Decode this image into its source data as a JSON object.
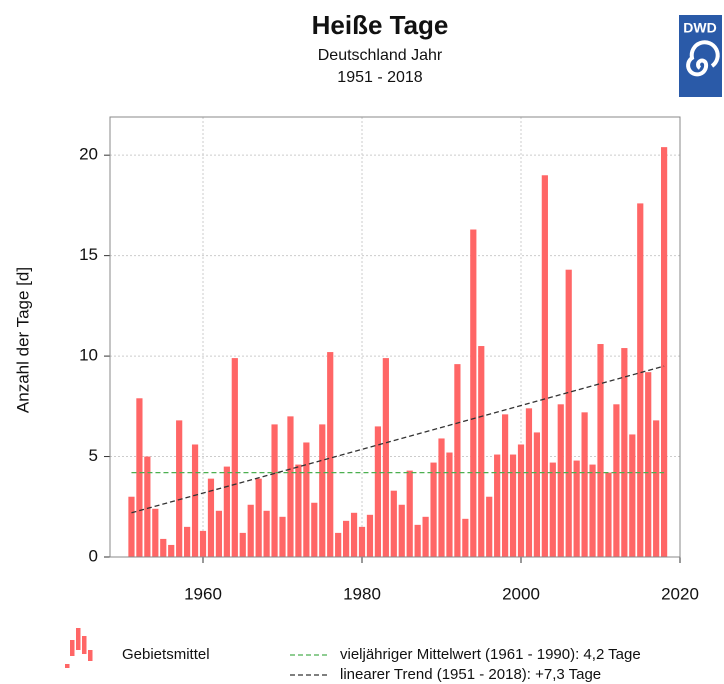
{
  "chart_data": {
    "type": "bar",
    "title": "Heiße Tage",
    "subtitle": "Deutschland Jahr",
    "period": "1951 - 2018",
    "y_label": "Anzahl der Tage [d]",
    "logo": "DWD",
    "x": [
      1951,
      1952,
      1953,
      1954,
      1955,
      1956,
      1957,
      1958,
      1959,
      1960,
      1961,
      1962,
      1963,
      1964,
      1965,
      1966,
      1967,
      1968,
      1969,
      1970,
      1971,
      1972,
      1973,
      1974,
      1975,
      1976,
      1977,
      1978,
      1979,
      1980,
      1981,
      1982,
      1983,
      1984,
      1985,
      1986,
      1987,
      1988,
      1989,
      1990,
      1991,
      1992,
      1993,
      1994,
      1995,
      1996,
      1997,
      1998,
      1999,
      2000,
      2001,
      2002,
      2003,
      2004,
      2005,
      2006,
      2007,
      2008,
      2009,
      2010,
      2011,
      2012,
      2013,
      2014,
      2015,
      2016,
      2017,
      2018
    ],
    "series": [
      {
        "name": "Gebietsmittel",
        "color": "#ff6666",
        "values": [
          3.0,
          7.9,
          5.0,
          2.4,
          0.9,
          0.6,
          6.8,
          1.5,
          5.6,
          1.3,
          3.9,
          2.3,
          4.5,
          9.9,
          1.2,
          2.6,
          3.9,
          2.3,
          6.6,
          2.0,
          7.0,
          4.6,
          5.7,
          2.7,
          6.6,
          10.2,
          1.2,
          1.8,
          2.2,
          1.5,
          2.1,
          6.5,
          9.9,
          3.3,
          2.6,
          4.3,
          1.6,
          2.0,
          4.7,
          5.9,
          5.2,
          9.6,
          1.9,
          16.3,
          10.5,
          3.0,
          5.1,
          7.1,
          5.1,
          5.6,
          7.4,
          6.2,
          19.0,
          4.7,
          7.6,
          14.3,
          4.8,
          7.2,
          4.6,
          10.6,
          4.2,
          7.6,
          10.4,
          6.1,
          17.6,
          9.2,
          6.8,
          20.4
        ]
      }
    ],
    "lines": [
      {
        "name": "vieljähriger Mittelwert (1961 - 1990): 4,2 Tage",
        "color": "#4caf50",
        "x": [
          1951,
          2018
        ],
        "values": [
          4.2,
          4.2
        ]
      },
      {
        "name": "linearer Trend (1951 - 2018): +7,3 Tage",
        "color": "#333333",
        "x": [
          1951,
          2018
        ],
        "values": [
          2.2,
          9.5
        ]
      }
    ],
    "xlim": [
      1948.3,
      2020
    ],
    "ylim": [
      0,
      21.9
    ],
    "xticks": [
      1960,
      1980,
      2000,
      2020
    ],
    "yticks": [
      0,
      5,
      10,
      15,
      20
    ],
    "grid": true
  }
}
